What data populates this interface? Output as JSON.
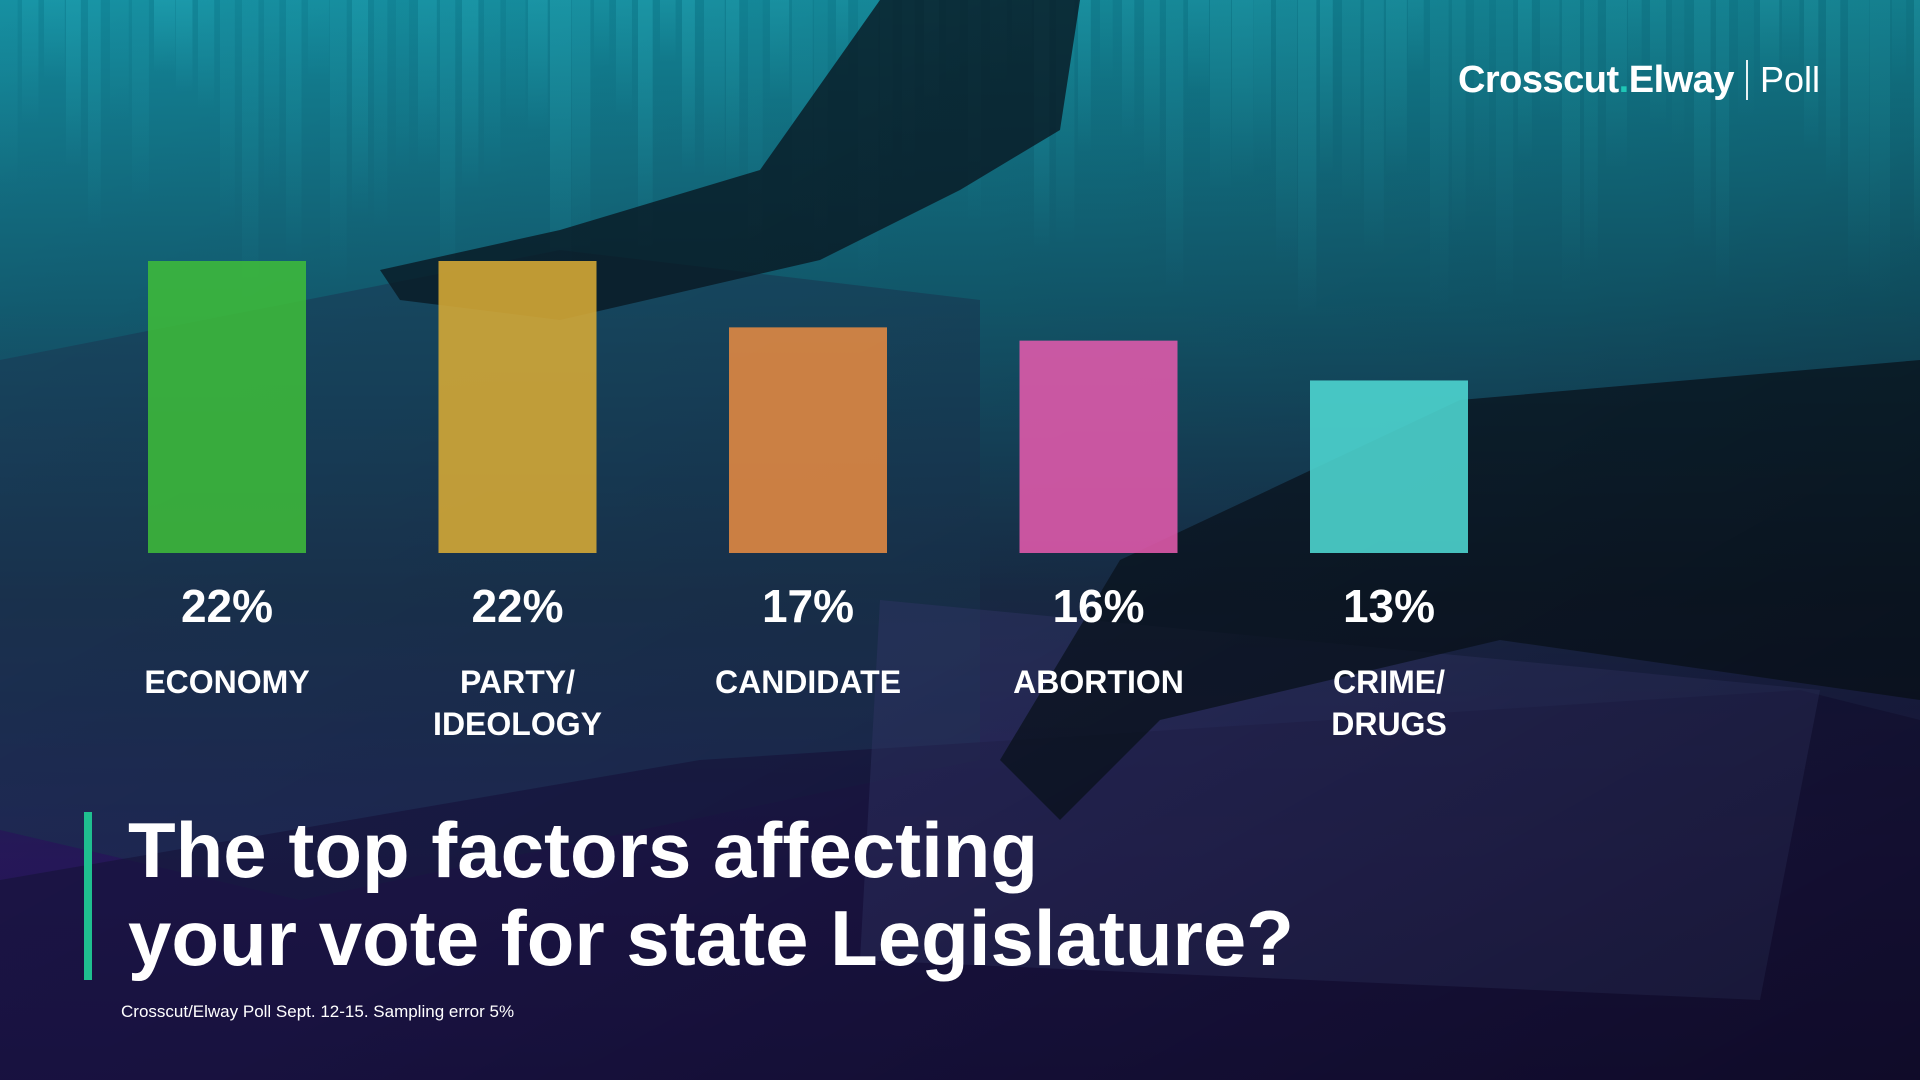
{
  "logo": {
    "brand_part1": "Crosscut",
    "brand_dot": ".",
    "brand_part2": "Elway",
    "suffix": "Poll"
  },
  "title_lines": [
    "The top factors affecting",
    "your vote for state Legislature?"
  ],
  "footnote": "Crosscut/Elway Poll Sept. 12-15. Sampling error 5%",
  "chart_data": {
    "type": "bar",
    "categories": [
      [
        "ECONOMY"
      ],
      [
        "PARTY/",
        "IDEOLOGY"
      ],
      [
        "CANDIDATE"
      ],
      [
        "ABORTION"
      ],
      [
        "CRIME/",
        "DRUGS"
      ]
    ],
    "values": [
      22,
      22,
      17,
      16,
      13
    ],
    "value_labels": [
      "22%",
      "22%",
      "17%",
      "16%",
      "13%"
    ],
    "colors": [
      "#3dbb3a",
      "#d8ab36",
      "#e58a42",
      "#e25aac",
      "#4fd8d3"
    ],
    "ylim": [
      0,
      22
    ],
    "grid": false,
    "legend": "none"
  }
}
